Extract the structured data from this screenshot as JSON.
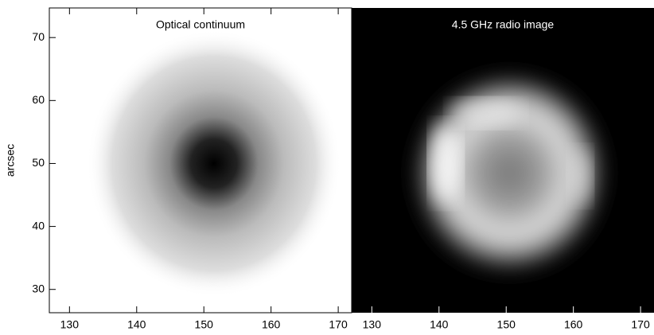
{
  "chart_data": [
    {
      "type": "image",
      "title": "Optical continuum",
      "ylabel": "arcsec",
      "background": "#ffffff",
      "xlim": [
        127,
        172
      ],
      "xticks": [
        130,
        140,
        150,
        160,
        170
      ],
      "ylim": [
        26.3,
        74.7
      ],
      "yticks": [
        30,
        40,
        50,
        60,
        70
      ]
    },
    {
      "type": "image",
      "title": "4.5 GHz radio image",
      "background": "#000000",
      "xlim": [
        127,
        172
      ],
      "xticks": [
        130,
        140,
        150,
        160,
        170
      ],
      "ylim": [
        26.3,
        74.7
      ]
    }
  ]
}
